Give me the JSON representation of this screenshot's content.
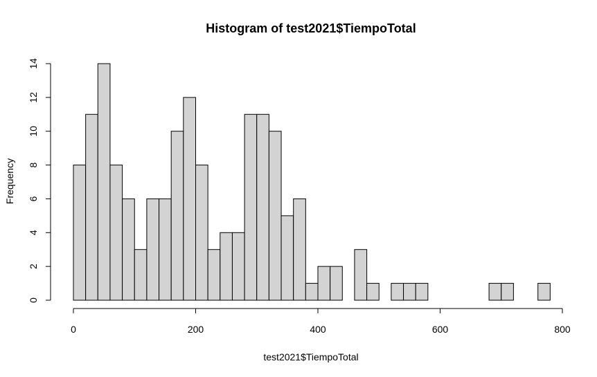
{
  "chart_data": {
    "type": "bar",
    "title": "Histogram of test2021$TiempoTotal",
    "xlabel": "test2021$TiempoTotal",
    "ylabel": "Frequency",
    "bin_width": 20,
    "bins_start": [
      0,
      20,
      40,
      60,
      80,
      100,
      120,
      140,
      160,
      180,
      200,
      220,
      240,
      260,
      280,
      300,
      320,
      340,
      360,
      380,
      400,
      420,
      440,
      460,
      480,
      500,
      520,
      540,
      560,
      580,
      600,
      620,
      640,
      660,
      680,
      700,
      720,
      740,
      760
    ],
    "values": [
      8,
      11,
      14,
      8,
      6,
      3,
      6,
      6,
      10,
      12,
      8,
      3,
      4,
      4,
      11,
      11,
      10,
      5,
      6,
      1,
      2,
      2,
      0,
      3,
      1,
      0,
      1,
      1,
      1,
      0,
      0,
      0,
      0,
      0,
      1,
      1,
      0,
      0,
      1
    ],
    "xlim": [
      0,
      800
    ],
    "ylim": [
      0,
      14
    ],
    "xticks": [
      0,
      200,
      400,
      600,
      800
    ],
    "yticks": [
      0,
      2,
      4,
      6,
      8,
      10,
      12,
      14
    ],
    "grid": false,
    "bar_fill": "#d3d3d3",
    "bar_stroke": "#000000"
  }
}
